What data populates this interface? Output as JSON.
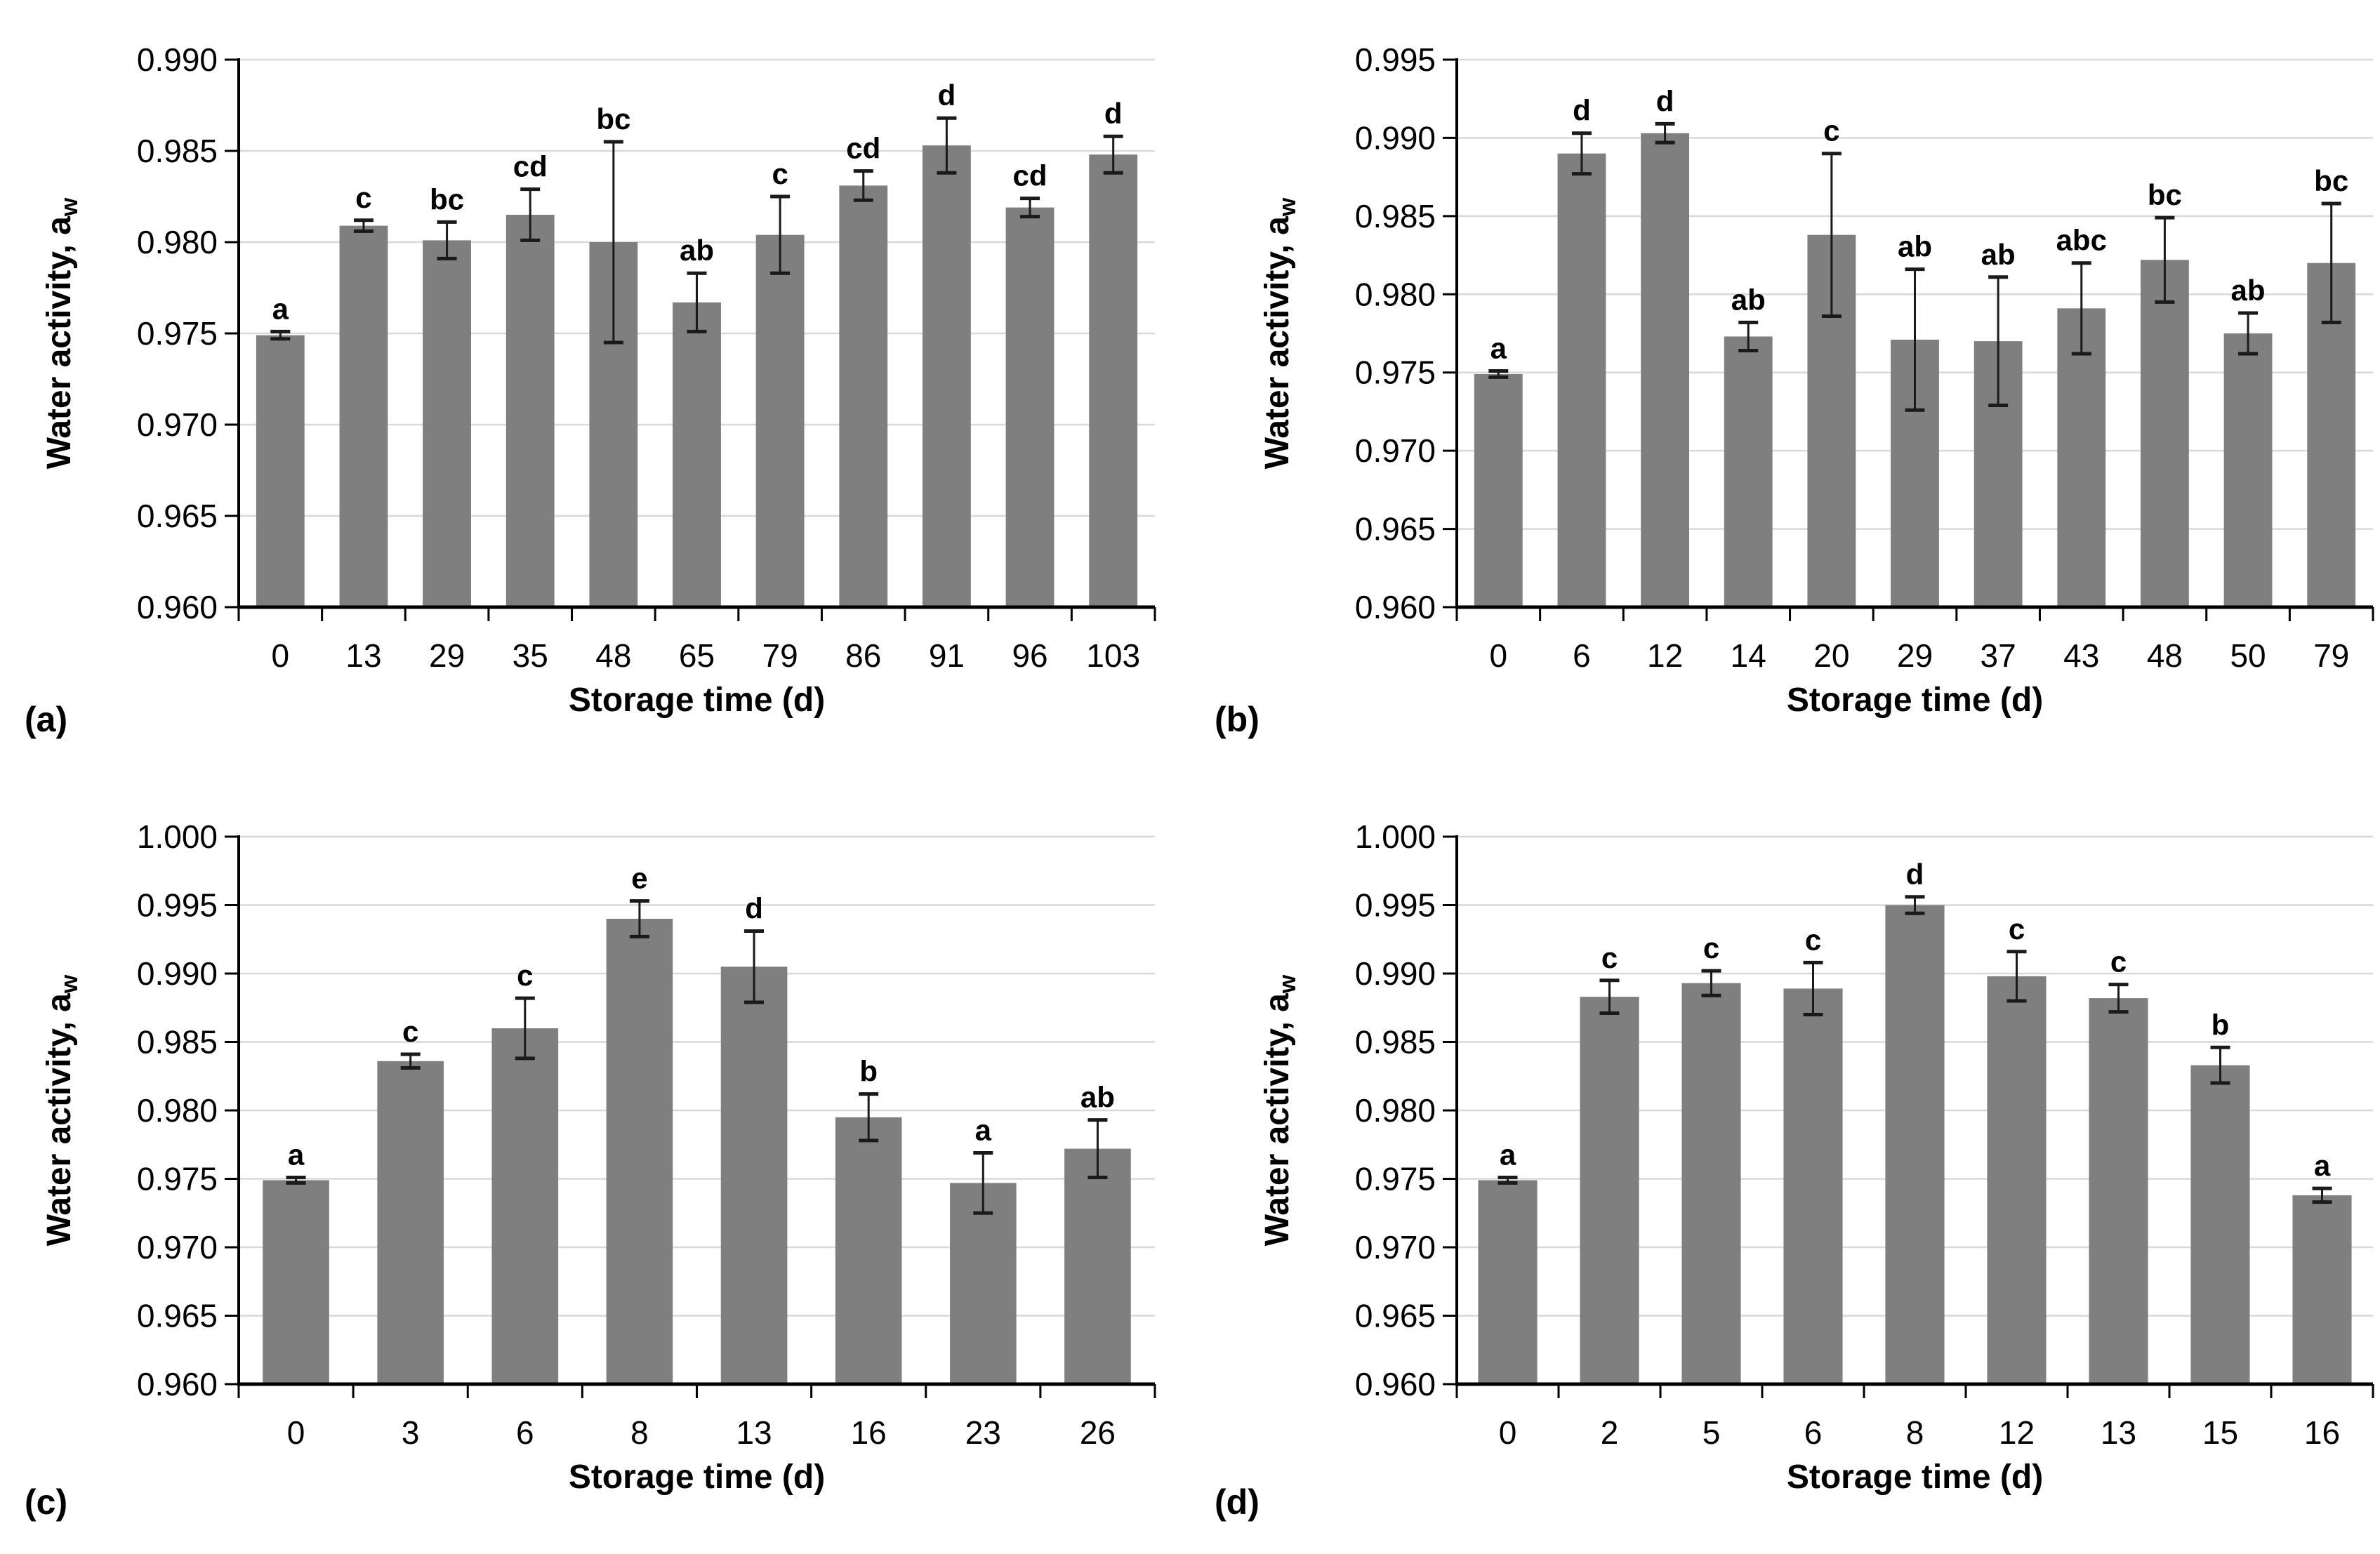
{
  "figure": {
    "background": "#ffffff",
    "bar_color": "#7f7f7f",
    "grid_color": "#d9d9d9",
    "axis_color": "#000000",
    "error_color": "#1a1a1a",
    "text_color": "#000000"
  },
  "chart_data": [
    {
      "type": "bar",
      "panel_label": "(a)",
      "xlabel": "Storage time (d)",
      "ylabel": "Water activity, a",
      "ylabel_subscript": "w",
      "ylim": [
        0.96,
        0.99
      ],
      "ytick_step": 0.005,
      "ytick_labels": [
        "0.960",
        "0.965",
        "0.970",
        "0.975",
        "0.980",
        "0.985",
        "0.990"
      ],
      "grid": true,
      "legend": "none",
      "categories": [
        "0",
        "13",
        "29",
        "35",
        "48",
        "65",
        "79",
        "86",
        "91",
        "96",
        "103"
      ],
      "values": [
        0.9749,
        0.9809,
        0.9801,
        0.9815,
        0.98,
        0.9767,
        0.9804,
        0.9831,
        0.9853,
        0.9819,
        0.9848
      ],
      "errors": [
        0.0002,
        0.0003,
        0.001,
        0.0014,
        0.0055,
        0.0016,
        0.0021,
        0.0008,
        0.0015,
        0.0005,
        0.001
      ],
      "sig_letters": [
        "a",
        "c",
        "bc",
        "cd",
        "bc",
        "ab",
        "c",
        "cd",
        "d",
        "cd",
        "d"
      ]
    },
    {
      "type": "bar",
      "panel_label": "(b)",
      "xlabel": "Storage time (d)",
      "ylabel": "Water activity, a",
      "ylabel_subscript": "w",
      "ylim": [
        0.96,
        0.995
      ],
      "ytick_step": 0.005,
      "ytick_labels": [
        "0.960",
        "0.965",
        "0.970",
        "0.975",
        "0.980",
        "0.985",
        "0.990",
        "0.995"
      ],
      "grid": true,
      "legend": "none",
      "categories": [
        "0",
        "6",
        "12",
        "14",
        "20",
        "29",
        "37",
        "43",
        "48",
        "50",
        "79"
      ],
      "values": [
        0.9749,
        0.989,
        0.9903,
        0.9773,
        0.9838,
        0.9771,
        0.977,
        0.9791,
        0.9822,
        0.9775,
        0.982
      ],
      "errors": [
        0.0002,
        0.0013,
        0.0006,
        0.0009,
        0.0052,
        0.0045,
        0.0041,
        0.0029,
        0.0027,
        0.0013,
        0.0038
      ],
      "sig_letters": [
        "a",
        "d",
        "d",
        "ab",
        "c",
        "ab",
        "ab",
        "abc",
        "bc",
        "ab",
        "bc"
      ]
    },
    {
      "type": "bar",
      "panel_label": "(c)",
      "xlabel": "Storage time (d)",
      "ylabel": "Water activity, a",
      "ylabel_subscript": "w",
      "ylim": [
        0.96,
        1.0
      ],
      "ytick_step": 0.005,
      "ytick_labels": [
        "0.960",
        "0.965",
        "0.970",
        "0.975",
        "0.980",
        "0.985",
        "0.990",
        "0.995",
        "1.000"
      ],
      "grid": true,
      "legend": "none",
      "categories": [
        "0",
        "3",
        "6",
        "8",
        "13",
        "16",
        "23",
        "26"
      ],
      "values": [
        0.9749,
        0.9836,
        0.986,
        0.994,
        0.9905,
        0.9795,
        0.9747,
        0.9772
      ],
      "errors": [
        0.0002,
        0.0005,
        0.0022,
        0.0013,
        0.0026,
        0.0017,
        0.0022,
        0.0021
      ],
      "sig_letters": [
        "a",
        "c",
        "c",
        "e",
        "d",
        "b",
        "a",
        "ab"
      ]
    },
    {
      "type": "bar",
      "panel_label": "(d)",
      "xlabel": "Storage time (d)",
      "ylabel": "Water activity, a",
      "ylabel_subscript": "w",
      "ylim": [
        0.96,
        1.0
      ],
      "ytick_step": 0.005,
      "ytick_labels": [
        "0.960",
        "0.965",
        "0.970",
        "0.975",
        "0.980",
        "0.985",
        "0.990",
        "0.995",
        "1.000"
      ],
      "grid": true,
      "legend": "none",
      "categories": [
        "0",
        "2",
        "5",
        "6",
        "8",
        "12",
        "13",
        "15",
        "16"
      ],
      "values": [
        0.9749,
        0.9883,
        0.9893,
        0.9889,
        0.995,
        0.9898,
        0.9882,
        0.9833,
        0.9738
      ],
      "errors": [
        0.0002,
        0.0012,
        0.0009,
        0.0019,
        0.0006,
        0.0018,
        0.001,
        0.0013,
        0.0005
      ],
      "sig_letters": [
        "a",
        "c",
        "c",
        "c",
        "d",
        "c",
        "c",
        "b",
        "a"
      ]
    }
  ]
}
